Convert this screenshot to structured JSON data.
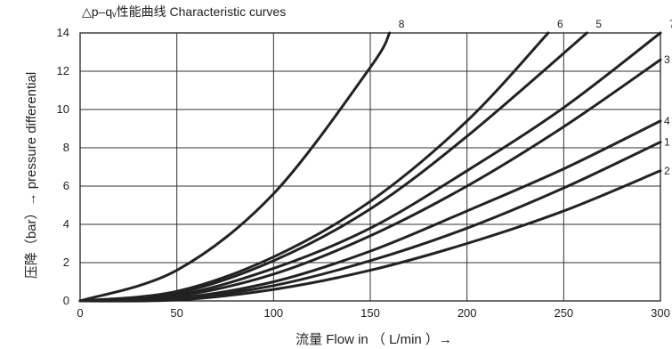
{
  "chart_data": {
    "type": "line",
    "title": "△p–qᵥ性能曲线 Characteristic curves",
    "xlabel": "流量 Flow in （ L/min ）→",
    "ylabel": "压降（bar）→ pressure differential",
    "xlim": [
      0,
      300
    ],
    "ylim": [
      0,
      14
    ],
    "xticks": [
      0,
      50,
      100,
      150,
      200,
      250,
      300
    ],
    "yticks": [
      0,
      2,
      4,
      6,
      8,
      10,
      12,
      14
    ],
    "grid": true,
    "series": [
      {
        "name": "8",
        "x": [
          0,
          50,
          100,
          150,
          160
        ],
        "y": [
          0,
          1.6,
          5.6,
          12.2,
          14
        ]
      },
      {
        "name": "6",
        "x": [
          0,
          50,
          100,
          150,
          200,
          242
        ],
        "y": [
          0,
          0.5,
          2.3,
          5.2,
          9.4,
          14
        ]
      },
      {
        "name": "5",
        "x": [
          0,
          50,
          100,
          150,
          200,
          262
        ],
        "y": [
          0,
          0.4,
          2.1,
          4.8,
          8.6,
          14
        ]
      },
      {
        "name": "7",
        "x": [
          0,
          50,
          100,
          150,
          200,
          250,
          300
        ],
        "y": [
          0,
          0.3,
          1.7,
          3.8,
          6.8,
          10.1,
          14
        ]
      },
      {
        "name": "3",
        "x": [
          0,
          50,
          100,
          150,
          200,
          250,
          300
        ],
        "y": [
          0,
          0.25,
          1.4,
          3.4,
          6.0,
          9.1,
          12.6
        ]
      },
      {
        "name": "4",
        "x": [
          0,
          50,
          100,
          150,
          200,
          250,
          300
        ],
        "y": [
          0,
          0.15,
          1.0,
          2.6,
          4.7,
          6.9,
          9.4
        ]
      },
      {
        "name": "1",
        "x": [
          0,
          50,
          100,
          150,
          200,
          250,
          300
        ],
        "y": [
          0,
          0.1,
          0.8,
          2.1,
          3.8,
          5.9,
          8.3
        ]
      },
      {
        "name": "2",
        "x": [
          0,
          50,
          100,
          150,
          200,
          250,
          300
        ],
        "y": [
          0,
          0.05,
          0.6,
          1.6,
          3.0,
          4.7,
          6.8
        ]
      }
    ]
  }
}
